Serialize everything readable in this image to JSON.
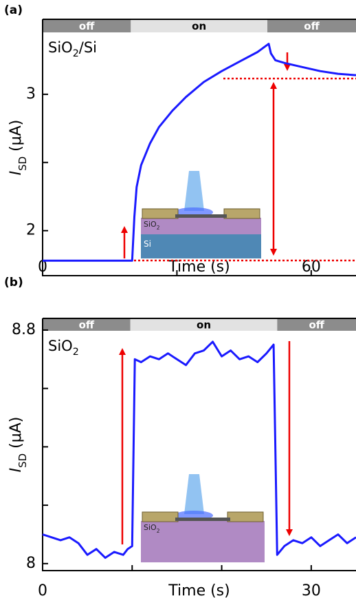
{
  "chart_data": [
    {
      "type": "line",
      "panel_label": "(a)",
      "annotation": [
        "SiO",
        "2",
        "/Si"
      ],
      "inset_labels": [
        [
          "SiO",
          "2"
        ],
        [
          "Si"
        ]
      ],
      "x_label": "Time (s)",
      "y_label": [
        "I",
        "SD",
        " (μA)"
      ],
      "xlim": [
        0,
        70
      ],
      "xticks": [
        0,
        60
      ],
      "xminorticks": [
        30
      ],
      "ylim": [
        1.67,
        3.55
      ],
      "yticks": [
        2,
        3
      ],
      "yminorticks": [
        2.5
      ],
      "state_bar": [
        {
          "label": "off",
          "x": [
            0,
            19.7
          ]
        },
        {
          "label": "on",
          "x": [
            19.7,
            50.2
          ]
        },
        {
          "label": "off",
          "x": [
            50.2,
            70
          ]
        }
      ],
      "series": [
        {
          "color": "#1a1aff",
          "x": [
            0,
            5,
            10,
            15,
            20,
            20.5,
            21,
            22,
            24,
            26,
            29,
            32,
            36,
            40,
            44,
            48,
            50.5,
            51,
            52,
            54,
            58,
            62,
            66,
            70
          ],
          "values": [
            1.78,
            1.78,
            1.78,
            1.78,
            1.78,
            2.1,
            2.32,
            2.48,
            2.64,
            2.76,
            2.88,
            2.98,
            3.09,
            3.17,
            3.24,
            3.31,
            3.37,
            3.3,
            3.25,
            3.23,
            3.2,
            3.17,
            3.15,
            3.14
          ]
        }
      ]
    },
    {
      "type": "line",
      "panel_label": "(b)",
      "annotation": [
        "SiO",
        "2"
      ],
      "inset_labels": [
        [
          "SiO",
          "2"
        ]
      ],
      "x_label": "Time (s)",
      "y_label": [
        "I",
        "SD",
        " (μA)"
      ],
      "xlim": [
        0,
        35
      ],
      "xticks": [
        0,
        30
      ],
      "xminorticks": [
        10,
        20
      ],
      "ylim": [
        7.976,
        8.84
      ],
      "yticks": [
        8,
        8.8
      ],
      "yminorticks": [
        8.2,
        8.4,
        8.6
      ],
      "state_bar": [
        {
          "label": "off",
          "x": [
            0,
            9.8
          ]
        },
        {
          "label": "on",
          "x": [
            9.8,
            26.2
          ]
        },
        {
          "label": "off",
          "x": [
            26.2,
            35
          ]
        }
      ],
      "series": [
        {
          "color": "#1a1aff",
          "x": [
            0,
            1,
            2,
            3,
            4,
            5,
            6,
            7,
            8,
            9,
            9.5,
            10,
            10.3,
            11,
            12,
            13,
            14,
            15,
            16,
            17,
            18,
            19,
            20,
            21,
            22,
            23,
            24,
            25,
            25.8,
            26.2,
            27,
            28,
            29,
            30,
            31,
            32,
            33,
            34,
            35
          ],
          "values": [
            8.1,
            8.09,
            8.08,
            8.09,
            8.07,
            8.03,
            8.05,
            8.02,
            8.04,
            8.03,
            8.05,
            8.06,
            8.7,
            8.69,
            8.71,
            8.7,
            8.72,
            8.7,
            8.68,
            8.72,
            8.73,
            8.76,
            8.71,
            8.73,
            8.7,
            8.71,
            8.69,
            8.72,
            8.75,
            8.03,
            8.06,
            8.08,
            8.07,
            8.09,
            8.06,
            8.08,
            8.1,
            8.07,
            8.09
          ]
        }
      ]
    }
  ]
}
